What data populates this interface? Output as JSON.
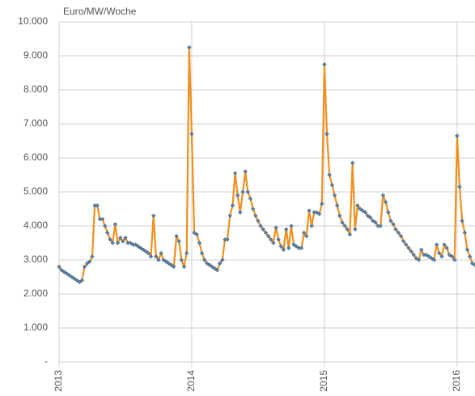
{
  "chart_data": {
    "type": "line",
    "y_axis_label": "Euro/MW/Woche",
    "color": "#f0901e",
    "marker_color": "#5f86ad",
    "grid": true,
    "xlim": [
      2013,
      2016.135
    ],
    "xticks": [
      2013,
      2014,
      2015,
      2016
    ],
    "ylim": [
      0,
      10000
    ],
    "yticks": [
      {
        "value": 0,
        "label": "-"
      },
      {
        "value": 1000,
        "label": "1.000"
      },
      {
        "value": 2000,
        "label": "2.000"
      },
      {
        "value": 3000,
        "label": "3.000"
      },
      {
        "value": 4000,
        "label": "4.000"
      },
      {
        "value": 5000,
        "label": "5.000"
      },
      {
        "value": 6000,
        "label": "6.000"
      },
      {
        "value": 7000,
        "label": "7.000"
      },
      {
        "value": 8000,
        "label": "8.000"
      },
      {
        "value": 9000,
        "label": "9.000"
      },
      {
        "value": 10000,
        "label": "10.000"
      }
    ],
    "x": [
      2013,
      2013.019,
      2013.038,
      2013.058,
      2013.077,
      2013.096,
      2013.115,
      2013.135,
      2013.154,
      2013.173,
      2013.192,
      2013.212,
      2013.231,
      2013.25,
      2013.269,
      2013.288,
      2013.308,
      2013.327,
      2013.346,
      2013.365,
      2013.385,
      2013.404,
      2013.423,
      2013.442,
      2013.462,
      2013.481,
      2013.5,
      2013.519,
      2013.538,
      2013.558,
      2013.577,
      2013.596,
      2013.615,
      2013.635,
      2013.654,
      2013.673,
      2013.692,
      2013.712,
      2013.731,
      2013.75,
      2013.769,
      2013.788,
      2013.808,
      2013.827,
      2013.846,
      2013.865,
      2013.885,
      2013.904,
      2013.923,
      2013.942,
      2013.962,
      2013.981,
      2014,
      2014.019,
      2014.038,
      2014.058,
      2014.077,
      2014.096,
      2014.115,
      2014.135,
      2014.154,
      2014.173,
      2014.192,
      2014.212,
      2014.231,
      2014.25,
      2014.269,
      2014.288,
      2014.308,
      2014.327,
      2014.346,
      2014.365,
      2014.385,
      2014.404,
      2014.423,
      2014.442,
      2014.462,
      2014.481,
      2014.5,
      2014.519,
      2014.538,
      2014.558,
      2014.577,
      2014.596,
      2014.615,
      2014.635,
      2014.654,
      2014.673,
      2014.692,
      2014.712,
      2014.731,
      2014.75,
      2014.769,
      2014.788,
      2014.808,
      2014.827,
      2014.846,
      2014.865,
      2014.885,
      2014.904,
      2014.923,
      2014.942,
      2014.962,
      2014.981,
      2015,
      2015.019,
      2015.038,
      2015.058,
      2015.077,
      2015.096,
      2015.115,
      2015.135,
      2015.154,
      2015.173,
      2015.192,
      2015.212,
      2015.231,
      2015.25,
      2015.269,
      2015.288,
      2015.308,
      2015.327,
      2015.346,
      2015.365,
      2015.385,
      2015.404,
      2015.423,
      2015.442,
      2015.462,
      2015.481,
      2015.5,
      2015.519,
      2015.538,
      2015.558,
      2015.577,
      2015.596,
      2015.615,
      2015.635,
      2015.654,
      2015.673,
      2015.692,
      2015.712,
      2015.731,
      2015.75,
      2015.769,
      2015.788,
      2015.808,
      2015.827,
      2015.846,
      2015.865,
      2015.885,
      2015.904,
      2015.923,
      2015.942,
      2015.962,
      2015.981,
      2016,
      2016.019,
      2016.038,
      2016.058,
      2016.077,
      2016.096,
      2016.115,
      2016.135
    ],
    "values": [
      2800,
      2700,
      2650,
      2600,
      2550,
      2500,
      2450,
      2400,
      2350,
      2400,
      2800,
      2900,
      2950,
      3100,
      4600,
      4600,
      4200,
      4200,
      4000,
      3800,
      3600,
      3500,
      4050,
      3500,
      3650,
      3550,
      3650,
      3500,
      3500,
      3450,
      3450,
      3400,
      3350,
      3300,
      3250,
      3200,
      3100,
      4300,
      3100,
      3000,
      3200,
      3000,
      2950,
      2900,
      2850,
      2800,
      3700,
      3550,
      3000,
      2800,
      3200,
      9250,
      6700,
      3800,
      3750,
      3500,
      3200,
      3000,
      2900,
      2850,
      2800,
      2750,
      2700,
      2900,
      3000,
      3600,
      3600,
      4300,
      4600,
      5550,
      4900,
      4400,
      5000,
      5600,
      5000,
      4800,
      4500,
      4300,
      4150,
      4000,
      3900,
      3800,
      3700,
      3600,
      3500,
      3950,
      3600,
      3400,
      3300,
      3900,
      3350,
      4000,
      3450,
      3400,
      3350,
      3350,
      3800,
      3700,
      4450,
      4000,
      4400,
      4400,
      4350,
      4650,
      8750,
      6700,
      5500,
      5200,
      4900,
      4600,
      4300,
      4100,
      4000,
      3900,
      3750,
      5850,
      3900,
      4600,
      4500,
      4450,
      4400,
      4300,
      4250,
      4150,
      4100,
      4000,
      4000,
      4900,
      4700,
      4400,
      4150,
      4050,
      3900,
      3800,
      3700,
      3550,
      3450,
      3350,
      3250,
      3150,
      3050,
      3000,
      3300,
      3150,
      3150,
      3100,
      3050,
      3000,
      3450,
      3200,
      3100,
      3450,
      3350,
      3150,
      3100,
      3000,
      6650,
      5150,
      4150,
      3800,
      3300,
      3100,
      2900,
      2850
    ]
  }
}
